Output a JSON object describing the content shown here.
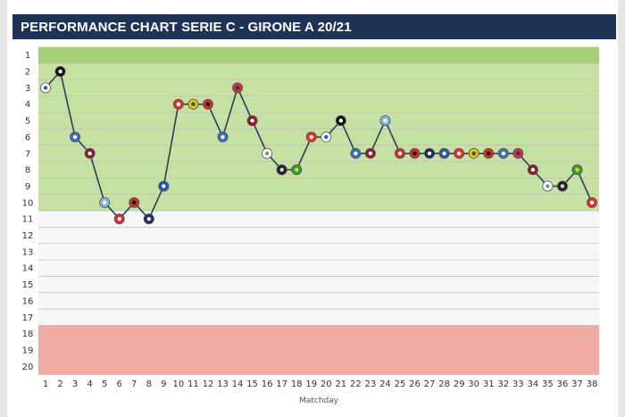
{
  "title": "PERFORMANCE CHART SERIE C - GIRONE A 20/21",
  "colors": {
    "title_bg": "#1e3355",
    "zone_top": "#a8d07a",
    "zone_upper": "#c7e0a4",
    "zone_middle": "#f7f7f7",
    "zone_bottom": "#f4aaa4",
    "line": "#2b3f57"
  },
  "chart_data": {
    "type": "line",
    "title": "PERFORMANCE CHART SERIE C - GIRONE A 20/21",
    "xlabel": "Matchday",
    "ylabel": "",
    "x": [
      1,
      2,
      3,
      4,
      5,
      6,
      7,
      8,
      9,
      10,
      11,
      12,
      13,
      14,
      15,
      16,
      17,
      18,
      19,
      20,
      21,
      22,
      23,
      24,
      25,
      26,
      27,
      28,
      29,
      30,
      31,
      32,
      33,
      34,
      35,
      36,
      37,
      38
    ],
    "y_ticks": [
      1,
      2,
      3,
      4,
      5,
      6,
      7,
      8,
      9,
      10,
      11,
      12,
      13,
      14,
      15,
      16,
      17,
      18,
      19,
      20
    ],
    "ylim": [
      1,
      20
    ],
    "y_inverted": true,
    "grid": true,
    "zones": [
      {
        "from": 1,
        "to": 1,
        "color": "#a8d07a"
      },
      {
        "from": 2,
        "to": 10,
        "color": "#c7e0a4"
      },
      {
        "from": 11,
        "to": 17,
        "color": "#f7f7f7"
      },
      {
        "from": 18,
        "to": 20,
        "color": "#f4aaa4"
      }
    ],
    "series": [
      {
        "values": [
          3,
          2,
          6,
          7,
          10,
          11,
          10,
          11,
          9,
          4,
          4,
          4,
          6,
          3,
          5,
          7,
          8,
          8,
          6,
          6,
          5,
          7,
          7,
          5,
          7,
          7,
          7,
          7,
          7,
          7,
          7,
          7,
          7,
          8,
          9,
          9,
          8,
          10
        ],
        "markers": [
          "white-blue-crest-icon",
          "black-white-crest-icon",
          "blue-white-crest-icon",
          "maroon-crest-icon",
          "light-blue-crest-icon",
          "red-white-crest-icon",
          "red-black-crest-icon",
          "navy-crest-icon",
          "blue-crest-icon",
          "red-crest-icon",
          "yellow-crest-icon",
          "red-black-crest-icon",
          "blue-white-crest-icon",
          "red-blue-crest-icon",
          "maroon-crest-icon",
          "white-crest-icon",
          "black-crest-icon",
          "green-yellow-crest-icon",
          "red-crest-icon",
          "white-blue-crest-icon",
          "black-white-crest-icon",
          "blue-white-crest-icon",
          "maroon-crest-icon",
          "light-blue-crest-icon",
          "red-white-crest-icon",
          "red-black-crest-icon",
          "navy-crest-icon",
          "blue-crest-icon",
          "red-crest-icon",
          "yellow-crest-icon",
          "red-black-crest-icon",
          "blue-white-crest-icon",
          "red-blue-crest-icon",
          "maroon-crest-icon",
          "white-crest-icon",
          "black-crest-icon",
          "green-yellow-crest-icon",
          "red-crest-icon"
        ]
      }
    ]
  }
}
